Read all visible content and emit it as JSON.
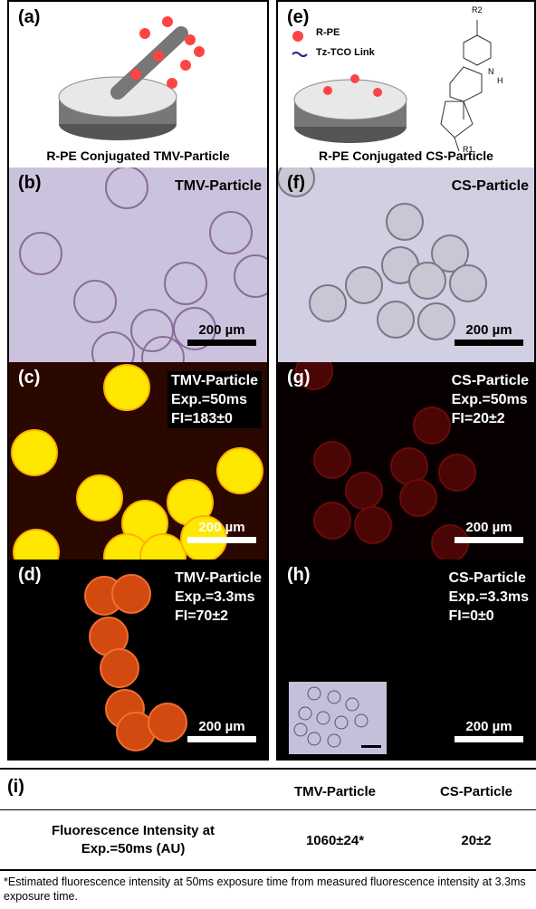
{
  "panels": {
    "a": {
      "label": "(a)",
      "caption": "R-PE Conjugated TMV-Particle"
    },
    "e": {
      "label": "(e)",
      "legend": [
        "R-PE",
        "Tz-TCO Link"
      ],
      "structure_labels": [
        "R2",
        "N",
        "H",
        "R1"
      ],
      "caption": "R-PE Conjugated CS-Particle"
    },
    "b": {
      "label": "(b)",
      "lines": [
        "TMV-Particle"
      ],
      "scale": "200 µm"
    },
    "f": {
      "label": "(f)",
      "lines": [
        "CS-Particle"
      ],
      "scale": "200 µm"
    },
    "c": {
      "label": "(c)",
      "lines": [
        "TMV-Particle",
        "Exp.=50ms",
        "FI=183±0"
      ],
      "scale": "200 µm"
    },
    "g": {
      "label": "(g)",
      "lines": [
        "CS-Particle",
        "Exp.=50ms",
        "FI=20±2"
      ],
      "scale": "200 µm"
    },
    "d": {
      "label": "(d)",
      "lines": [
        "TMV-Particle",
        "Exp.=3.3ms",
        "FI=70±2"
      ],
      "scale": "200 µm"
    },
    "h": {
      "label": "(h)",
      "lines": [
        "CS-Particle",
        "Exp.=3.3ms",
        "FI=0±0"
      ],
      "scale": "200 µm"
    }
  },
  "table": {
    "label": "(i)",
    "headers": [
      "TMV-Particle",
      "CS-Particle"
    ],
    "rows": [
      [
        "Fluorescence Intensity at Exp.=50ms (AU)",
        "1060±24*",
        "20±2"
      ]
    ]
  },
  "footnote": "*Estimated fluorescence intensity at 50ms exposure time from measured fluorescence intensity at 3.3ms exposure time."
}
